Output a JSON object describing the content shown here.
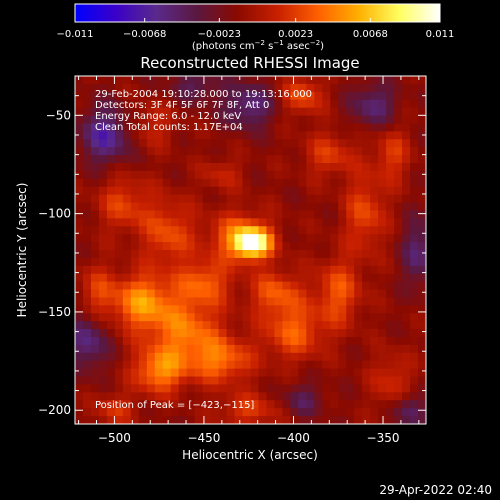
{
  "colorbar": {
    "ticks": [
      -0.011,
      -0.0068,
      -0.0023,
      0.0023,
      0.0068,
      0.011
    ],
    "tick_labels": [
      "−0.011",
      "−0.0068",
      "−0.0023",
      "0.0023",
      "0.0068",
      "0.011"
    ],
    "unit_parts": [
      "(photons cm",
      "−2",
      " s",
      "−1",
      " asec",
      "−2",
      ")"
    ],
    "range": [
      -0.011,
      0.011
    ],
    "colormap": [
      "#0000ff",
      "#3a00c8",
      "#5a2a8c",
      "#5a1840",
      "#8a0a00",
      "#c82000",
      "#ff6000",
      "#ffb000",
      "#ffff60",
      "#ffffff"
    ]
  },
  "chart_data": {
    "type": "heatmap",
    "title": "Reconstructed RHESSI Image",
    "xlabel": "Heliocentric X (arcsec)",
    "ylabel": "Heliocentric Y (arcsec)",
    "xlim": [
      -522,
      -326
    ],
    "ylim": [
      -207,
      -30
    ],
    "x_ticks": [
      -500,
      -450,
      -400,
      -350
    ],
    "x_tick_labels": [
      "−500",
      "−450",
      "−400",
      "−350"
    ],
    "y_ticks": [
      -50,
      -100,
      -150,
      -200
    ],
    "y_tick_labels": [
      "−50",
      "−100",
      "−150",
      "−200"
    ],
    "info_lines": [
      "29-Feb-2004 19:10:28.000 to 19:13:16.000",
      "Detectors: 3F 4F 5F 6F 7F 8F, Att 0",
      "Energy Range: 6.0 - 12.0 keV",
      "Clean     Total counts: 1.17E+04"
    ],
    "peak_label": "Position of Peak = [−423,−115]",
    "peak": [
      -423,
      -115
    ],
    "peak_value": 0.011,
    "blobs": [
      {
        "x": -423,
        "y": -115,
        "sx": 7,
        "sy": 5,
        "v": 0.0105
      },
      {
        "x": -430,
        "y": -112,
        "sx": 12,
        "sy": 9,
        "v": 0.005
      },
      {
        "x": -485,
        "y": -145,
        "sx": 12,
        "sy": 10,
        "v": 0.0062
      },
      {
        "x": -460,
        "y": -160,
        "sx": 14,
        "sy": 12,
        "v": 0.0052
      },
      {
        "x": -475,
        "y": -180,
        "sx": 10,
        "sy": 8,
        "v": 0.0058
      },
      {
        "x": -440,
        "y": -175,
        "sx": 12,
        "sy": 8,
        "v": 0.0048
      },
      {
        "x": -400,
        "y": -160,
        "sx": 12,
        "sy": 10,
        "v": 0.0045
      },
      {
        "x": -375,
        "y": -140,
        "sx": 9,
        "sy": 12,
        "v": 0.0042
      },
      {
        "x": -360,
        "y": -100,
        "sx": 8,
        "sy": 14,
        "v": 0.0038
      },
      {
        "x": -380,
        "y": -70,
        "sx": 10,
        "sy": 8,
        "v": 0.0032
      },
      {
        "x": -345,
        "y": -70,
        "sx": 7,
        "sy": 10,
        "v": 0.0032
      },
      {
        "x": -495,
        "y": -95,
        "sx": 10,
        "sy": 10,
        "v": 0.0035
      },
      {
        "x": -470,
        "y": -110,
        "sx": 10,
        "sy": 12,
        "v": 0.004
      },
      {
        "x": -450,
        "y": -135,
        "sx": 10,
        "sy": 8,
        "v": 0.0045
      },
      {
        "x": -410,
        "y": -140,
        "sx": 10,
        "sy": 8,
        "v": 0.0042
      },
      {
        "x": -425,
        "y": -200,
        "sx": 12,
        "sy": 6,
        "v": 0.0032
      },
      {
        "x": -500,
        "y": -200,
        "sx": 8,
        "sy": 6,
        "v": 0.0028
      },
      {
        "x": -395,
        "y": -40,
        "sx": 8,
        "sy": 7,
        "v": 0.004
      },
      {
        "x": -480,
        "y": -55,
        "sx": 10,
        "sy": 8,
        "v": 0.0024
      },
      {
        "x": -345,
        "y": -185,
        "sx": 8,
        "sy": 10,
        "v": 0.0028
      },
      {
        "x": -440,
        "y": -80,
        "sx": 8,
        "sy": 6,
        "v": 0.0022
      },
      {
        "x": -510,
        "y": -140,
        "sx": 7,
        "sy": 10,
        "v": 0.003
      },
      {
        "x": -505,
        "y": -60,
        "sx": 10,
        "sy": 10,
        "v": -0.0055
      },
      {
        "x": -425,
        "y": -45,
        "sx": 10,
        "sy": 8,
        "v": -0.0045
      },
      {
        "x": -355,
        "y": -45,
        "sx": 9,
        "sy": 8,
        "v": -0.004
      },
      {
        "x": -515,
        "y": -165,
        "sx": 8,
        "sy": 10,
        "v": -0.0045
      },
      {
        "x": -330,
        "y": -120,
        "sx": 6,
        "sy": 12,
        "v": -0.004
      },
      {
        "x": -395,
        "y": -195,
        "sx": 8,
        "sy": 6,
        "v": -0.003
      },
      {
        "x": -335,
        "y": -200,
        "sx": 6,
        "sy": 6,
        "v": -0.004
      },
      {
        "x": -455,
        "y": -35,
        "sx": 10,
        "sy": 6,
        "v": -0.003
      }
    ]
  },
  "footer": {
    "timestamp": "29-Apr-2022 02:40"
  }
}
